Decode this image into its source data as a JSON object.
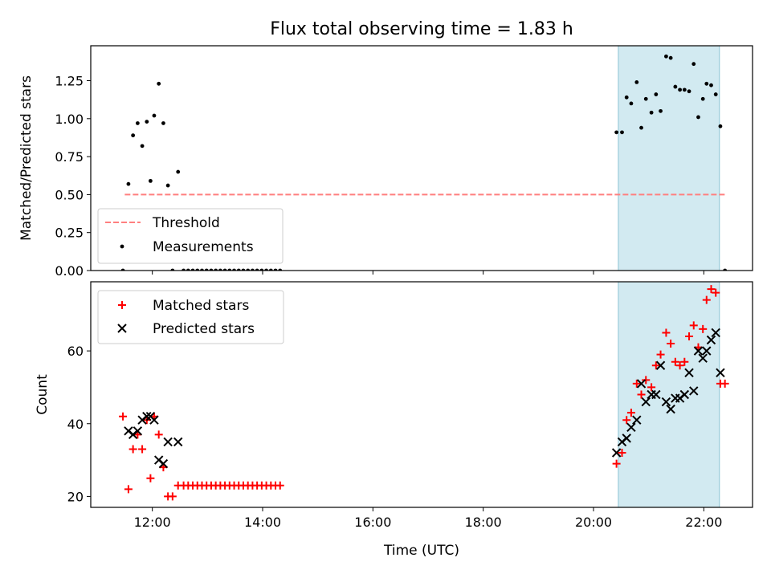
{
  "figure_title": "Flux total observing time = 1.83 h",
  "chart_data": [
    {
      "type": "scatter",
      "panel": "top",
      "ylabel": "Matched/Predicted stars",
      "xlabel": "",
      "xlim": [
        "10:53",
        "22:53"
      ],
      "ylim": [
        0,
        1.48
      ],
      "y_ticks": [
        0.0,
        0.25,
        0.5,
        0.75,
        1.0,
        1.25
      ],
      "y_tick_labels": [
        "0.00",
        "0.25",
        "0.50",
        "0.75",
        "1.00",
        "1.25"
      ],
      "x_ticks": [
        "12:00",
        "14:00",
        "16:00",
        "18:00",
        "20:00",
        "22:00"
      ],
      "grid": false,
      "legend_position": "lower-left",
      "shaded_region": {
        "x0": "20:27",
        "x1": "22:17",
        "color": "#add8e6"
      },
      "threshold": {
        "name": "Threshold",
        "y": 0.5,
        "x0": "11:30",
        "x1": "22:23",
        "color": "#ff7f7f",
        "style": "dashed"
      },
      "series": [
        {
          "name": "Measurements",
          "marker": "dot",
          "color": "#000000",
          "points": [
            [
              "11:28",
              0.0
            ],
            [
              "11:34",
              0.57
            ],
            [
              "11:39",
              0.89
            ],
            [
              "11:44",
              0.97
            ],
            [
              "11:49",
              0.82
            ],
            [
              "11:54",
              0.98
            ],
            [
              "11:58",
              0.59
            ],
            [
              "12:02",
              1.02
            ],
            [
              "12:07",
              1.23
            ],
            [
              "12:12",
              0.97
            ],
            [
              "12:17",
              0.56
            ],
            [
              "12:22",
              0.0
            ],
            [
              "12:28",
              0.65
            ],
            [
              "12:34",
              0.0
            ],
            [
              "12:39",
              0.0
            ],
            [
              "12:44",
              0.0
            ],
            [
              "12:49",
              0.0
            ],
            [
              "12:54",
              0.0
            ],
            [
              "12:59",
              0.0
            ],
            [
              "13:04",
              0.0
            ],
            [
              "13:09",
              0.0
            ],
            [
              "13:14",
              0.0
            ],
            [
              "13:19",
              0.0
            ],
            [
              "13:24",
              0.0
            ],
            [
              "13:29",
              0.0
            ],
            [
              "13:34",
              0.0
            ],
            [
              "13:39",
              0.0
            ],
            [
              "13:44",
              0.0
            ],
            [
              "13:49",
              0.0
            ],
            [
              "13:54",
              0.0
            ],
            [
              "13:59",
              0.0
            ],
            [
              "14:04",
              0.0
            ],
            [
              "14:09",
              0.0
            ],
            [
              "14:14",
              0.0
            ],
            [
              "14:19",
              0.0
            ],
            [
              "20:25",
              0.91
            ],
            [
              "20:31",
              0.91
            ],
            [
              "20:36",
              1.14
            ],
            [
              "20:41",
              1.1
            ],
            [
              "20:47",
              1.24
            ],
            [
              "20:52",
              0.94
            ],
            [
              "20:57",
              1.13
            ],
            [
              "21:03",
              1.04
            ],
            [
              "21:08",
              1.16
            ],
            [
              "21:13",
              1.05
            ],
            [
              "21:19",
              1.41
            ],
            [
              "21:24",
              1.4
            ],
            [
              "21:29",
              1.21
            ],
            [
              "21:34",
              1.19
            ],
            [
              "21:39",
              1.19
            ],
            [
              "21:44",
              1.18
            ],
            [
              "21:49",
              1.36
            ],
            [
              "21:54",
              1.01
            ],
            [
              "21:59",
              1.13
            ],
            [
              "22:03",
              1.23
            ],
            [
              "22:08",
              1.22
            ],
            [
              "22:13",
              1.16
            ],
            [
              "22:18",
              0.95
            ],
            [
              "22:23",
              0.0
            ]
          ]
        }
      ]
    },
    {
      "type": "scatter",
      "panel": "bottom",
      "ylabel": "Count",
      "xlabel": "Time (UTC)",
      "xlim": [
        "10:53",
        "22:53"
      ],
      "ylim": [
        17,
        79
      ],
      "y_ticks": [
        20,
        40,
        60
      ],
      "x_ticks": [
        "12:00",
        "14:00",
        "16:00",
        "18:00",
        "20:00",
        "22:00"
      ],
      "grid": false,
      "legend_position": "upper-left",
      "shaded_region": {
        "x0": "20:27",
        "x1": "22:17",
        "color": "#add8e6"
      },
      "series": [
        {
          "name": "Matched stars",
          "marker": "plus",
          "color": "#ff0000",
          "points": [
            [
              "11:28",
              42
            ],
            [
              "11:34",
              22
            ],
            [
              "11:39",
              33
            ],
            [
              "11:44",
              37
            ],
            [
              "11:49",
              33
            ],
            [
              "11:54",
              41
            ],
            [
              "11:58",
              25
            ],
            [
              "12:02",
              42
            ],
            [
              "12:07",
              37
            ],
            [
              "12:12",
              28
            ],
            [
              "12:17",
              20
            ],
            [
              "12:22",
              20
            ],
            [
              "12:28",
              23
            ],
            [
              "12:34",
              23
            ],
            [
              "12:39",
              23
            ],
            [
              "12:44",
              23
            ],
            [
              "12:49",
              23
            ],
            [
              "12:54",
              23
            ],
            [
              "12:59",
              23
            ],
            [
              "13:04",
              23
            ],
            [
              "13:09",
              23
            ],
            [
              "13:14",
              23
            ],
            [
              "13:19",
              23
            ],
            [
              "13:24",
              23
            ],
            [
              "13:29",
              23
            ],
            [
              "13:34",
              23
            ],
            [
              "13:39",
              23
            ],
            [
              "13:44",
              23
            ],
            [
              "13:49",
              23
            ],
            [
              "13:54",
              23
            ],
            [
              "13:59",
              23
            ],
            [
              "14:04",
              23
            ],
            [
              "14:09",
              23
            ],
            [
              "14:14",
              23
            ],
            [
              "14:19",
              23
            ],
            [
              "20:25",
              29
            ],
            [
              "20:31",
              32
            ],
            [
              "20:36",
              41
            ],
            [
              "20:41",
              43
            ],
            [
              "20:47",
              51
            ],
            [
              "20:52",
              48
            ],
            [
              "20:57",
              52
            ],
            [
              "21:03",
              50
            ],
            [
              "21:08",
              56
            ],
            [
              "21:13",
              59
            ],
            [
              "21:19",
              65
            ],
            [
              "21:24",
              62
            ],
            [
              "21:29",
              57
            ],
            [
              "21:34",
              56
            ],
            [
              "21:39",
              57
            ],
            [
              "21:44",
              64
            ],
            [
              "21:49",
              67
            ],
            [
              "21:54",
              61
            ],
            [
              "21:59",
              66
            ],
            [
              "22:03",
              74
            ],
            [
              "22:08",
              77
            ],
            [
              "22:13",
              76
            ],
            [
              "22:18",
              51
            ],
            [
              "22:23",
              51
            ]
          ]
        },
        {
          "name": "Predicted stars",
          "marker": "x",
          "color": "#000000",
          "points": [
            [
              "11:34",
              38
            ],
            [
              "11:39",
              37
            ],
            [
              "11:44",
              38
            ],
            [
              "11:49",
              41
            ],
            [
              "11:54",
              42
            ],
            [
              "11:58",
              42
            ],
            [
              "12:02",
              41
            ],
            [
              "12:07",
              30
            ],
            [
              "12:12",
              29
            ],
            [
              "12:17",
              35
            ],
            [
              "12:28",
              35
            ],
            [
              "20:25",
              32
            ],
            [
              "20:31",
              35
            ],
            [
              "20:36",
              36
            ],
            [
              "20:41",
              39
            ],
            [
              "20:47",
              41
            ],
            [
              "20:52",
              51
            ],
            [
              "20:57",
              46
            ],
            [
              "21:03",
              48
            ],
            [
              "21:08",
              48
            ],
            [
              "21:13",
              56
            ],
            [
              "21:19",
              46
            ],
            [
              "21:24",
              44
            ],
            [
              "21:29",
              47
            ],
            [
              "21:34",
              47
            ],
            [
              "21:39",
              48
            ],
            [
              "21:44",
              54
            ],
            [
              "21:49",
              49
            ],
            [
              "21:54",
              60
            ],
            [
              "21:59",
              58
            ],
            [
              "22:03",
              60
            ],
            [
              "22:08",
              63
            ],
            [
              "22:13",
              65
            ],
            [
              "22:18",
              54
            ]
          ]
        }
      ]
    }
  ]
}
